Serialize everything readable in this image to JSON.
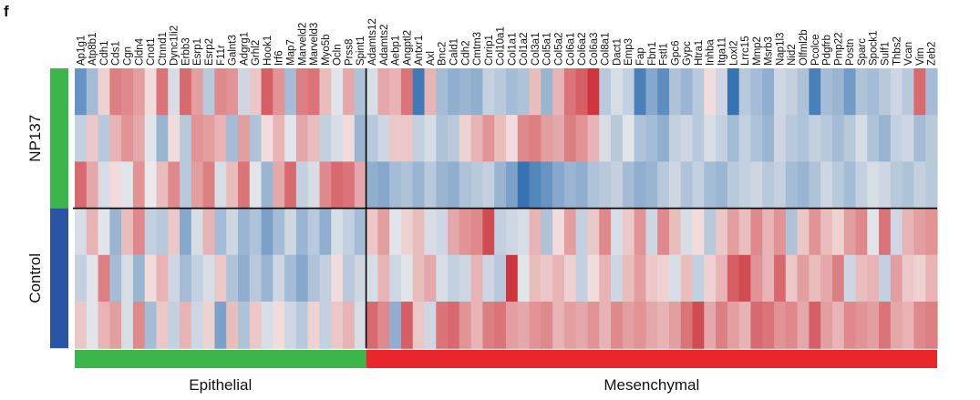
{
  "panel_label": "f",
  "chart_data": {
    "type": "heatmap",
    "genes": [
      "Ap1g1",
      "Atp8b1",
      "Cdh1",
      "Cds1",
      "Cgn",
      "Cldn4",
      "Cnot1",
      "Ctnnd1",
      "Dync1li2",
      "Erbb3",
      "Esrp1",
      "Esrp2",
      "F11r",
      "Galnt3",
      "Adgrg1",
      "Grhl2",
      "Hook1",
      "Irf6",
      "Map7",
      "Marveld2",
      "Marveld3",
      "Myo5b",
      "Ocln",
      "Prss8",
      "Spint1",
      "Adamts12",
      "Adamts2",
      "Aebp1",
      "Angptl2",
      "Antxr1",
      "Axl",
      "Bnc2",
      "Cald1",
      "Cdh2",
      "Cmtm3",
      "Cnrip1",
      "Col10a1",
      "Col1a1",
      "Col1a2",
      "Col3a1",
      "Col5a1",
      "Col5a2",
      "Col6a1",
      "Col6a2",
      "Col6a3",
      "Col8a1",
      "Dact1",
      "Emp3",
      "Fap",
      "Fbn1",
      "Fstl1",
      "Gpc6",
      "Gypc",
      "Htra1",
      "Inhba",
      "Itga11",
      "Loxl2",
      "Lrrc15",
      "Mmp2",
      "Msrb3",
      "Nap1l3",
      "Nid2",
      "Olfml2b",
      "Pcolce",
      "Pdgfrb",
      "Pmp22",
      "Postn",
      "Sparc",
      "Spock1",
      "Sulf1",
      "Thbs2",
      "Vcan",
      "Vim",
      "Zeb2"
    ],
    "n_epithelial": 25,
    "groups": [
      {
        "name": "NP137",
        "n_rows": 3,
        "color": "#3cb54a"
      },
      {
        "name": "Control",
        "n_rows": 3,
        "color": "#2a55a5"
      }
    ],
    "gene_sets": [
      {
        "name": "Epithelial",
        "color": "#3cb54a"
      },
      {
        "name": "Mesenchymal",
        "color": "#e8262c"
      }
    ],
    "color_scale": {
      "low": "#2b6cb0",
      "mid": "#f5f1ee",
      "high": "#c8212b",
      "range": [
        -2,
        2
      ]
    },
    "values": [
      [
        -1.4,
        -0.8,
        0.3,
        1.1,
        1.0,
        0.8,
        0.2,
        1.2,
        -0.3,
        1.3,
        0.8,
        -0.6,
        1.0,
        0.9,
        -0.4,
        0.4,
        1.4,
        0.9,
        -0.8,
        1.1,
        1.2,
        0.5,
        -0.2,
        0.7,
        -0.7,
        -0.3,
        0.7,
        0.6,
        1.2,
        -1.8,
        0.6,
        -0.8,
        -1.0,
        -0.9,
        -1.0,
        -0.5,
        -0.6,
        -0.8,
        -0.7,
        0.5,
        -0.9,
        0.6,
        1.2,
        1.4,
        1.8,
        -0.6,
        -0.3,
        -0.5,
        -1.7,
        -1.1,
        -1.5,
        -0.7,
        -0.9,
        -0.6,
        0.2,
        -0.4,
        -1.9,
        -0.6,
        -0.8,
        -1.0,
        -0.4,
        -0.5,
        -0.7,
        -1.7,
        -0.8,
        -0.9,
        -1.3,
        -0.7,
        -0.8,
        -0.6,
        -0.4,
        -0.6,
        1.3,
        -0.8
      ],
      [
        -0.5,
        0.4,
        -0.6,
        0.6,
        0.9,
        0.7,
        -0.2,
        -0.9,
        0.2,
        -0.6,
        0.9,
        0.8,
        0.6,
        -0.8,
        0.8,
        -0.7,
        0.2,
        0.6,
        -0.2,
        0.7,
        0.5,
        -0.5,
        -0.3,
        0.2,
        -0.9,
        -0.6,
        -0.4,
        0.4,
        0.4,
        -0.5,
        -0.3,
        -0.7,
        -0.6,
        0.3,
        0.6,
        0.9,
        0.5,
        0.2,
        1.0,
        1.1,
        0.8,
        0.7,
        1.1,
        0.9,
        0.6,
        -0.3,
        -0.6,
        -0.2,
        -0.7,
        -0.8,
        -1.0,
        -0.5,
        -0.4,
        -0.6,
        -0.3,
        -0.5,
        -0.8,
        -0.5,
        -0.7,
        -0.9,
        -0.4,
        -0.6,
        -0.7,
        -0.5,
        -0.6,
        -0.8,
        -0.6,
        -0.3,
        -0.7,
        -0.9,
        -0.5,
        -0.4,
        -0.8,
        -0.6
      ],
      [
        1.3,
        0.7,
        -0.3,
        0.2,
        -0.2,
        0.9,
        -0.1,
        0.5,
        1.0,
        -0.6,
        0.8,
        1.1,
        -0.3,
        0.5,
        1.2,
        -0.2,
        -0.9,
        0.7,
        1.3,
        -0.5,
        -0.3,
        1.0,
        1.3,
        1.2,
        0.7,
        -1.0,
        -1.1,
        -0.8,
        -0.7,
        -0.9,
        -0.6,
        -0.9,
        -1.0,
        -0.7,
        -0.6,
        -0.5,
        -0.9,
        -1.2,
        -1.9,
        -1.6,
        -1.4,
        -1.1,
        -0.9,
        -1.0,
        -0.7,
        -0.6,
        -0.5,
        -0.8,
        -1.0,
        -0.9,
        -0.6,
        -0.4,
        -0.7,
        -0.5,
        -0.8,
        -0.9,
        -0.6,
        -0.5,
        -0.4,
        -0.6,
        -0.5,
        -0.8,
        -0.9,
        -0.7,
        -0.4,
        -0.6,
        -0.8,
        -0.5,
        -0.3,
        -0.4,
        -0.6,
        -0.7,
        -0.5,
        -0.6
      ],
      [
        -0.3,
        0.6,
        -0.2,
        -0.9,
        0.5,
        1.0,
        -0.5,
        -0.6,
        0.4,
        -1.1,
        -0.3,
        0.6,
        -0.8,
        -0.4,
        -0.9,
        -0.7,
        -1.2,
        -0.8,
        -0.4,
        -0.9,
        -0.6,
        -1.0,
        -0.3,
        -0.5,
        -0.8,
        0.4,
        0.8,
        -0.2,
        0.3,
        0.5,
        -0.3,
        -0.4,
        0.7,
        0.9,
        1.0,
        1.6,
        -0.5,
        -0.4,
        -0.3,
        0.6,
        -0.7,
        0.2,
        0.8,
        -0.5,
        0.4,
        1.0,
        -0.3,
        0.4,
        0.9,
        -0.4,
        1.0,
        0.5,
        -0.3,
        0.2,
        -0.6,
        0.4,
        0.8,
        0.5,
        1.0,
        0.6,
        0.9,
        -0.7,
        0.4,
        0.9,
        0.5,
        0.3,
        0.8,
        1.0,
        -0.2,
        1.2,
        -0.4,
        0.6,
        0.8,
        0.9
      ],
      [
        -0.5,
        -0.2,
        1.1,
        -0.8,
        -0.3,
        -0.9,
        0.2,
        0.6,
        -0.4,
        -0.8,
        -0.5,
        -0.3,
        0.4,
        -0.7,
        -1.0,
        -0.6,
        -0.9,
        -0.4,
        -0.8,
        -1.1,
        -0.7,
        -0.5,
        0.2,
        -0.6,
        -0.4,
        -0.3,
        0.6,
        -0.4,
        -0.2,
        0.5,
        0.7,
        -0.3,
        -0.5,
        -0.4,
        0.6,
        -0.4,
        -0.6,
        1.8,
        -0.2,
        0.5,
        0.4,
        0.6,
        0.3,
        -0.5,
        0.2,
        0.6,
        -0.4,
        0.5,
        0.8,
        0.4,
        0.3,
        -0.3,
        0.5,
        -0.5,
        0.3,
        0.6,
        1.4,
        1.6,
        0.9,
        0.6,
        1.3,
        0.4,
        0.8,
        0.5,
        0.7,
        1.1,
        -0.4,
        0.5,
        0.6,
        -0.5,
        0.8,
        0.4,
        0.3,
        0.6
      ],
      [
        0.4,
        -0.2,
        0.6,
        0.8,
        -0.3,
        1.0,
        -0.8,
        0.4,
        -0.5,
        0.6,
        -0.4,
        0.3,
        -1.2,
        0.5,
        -0.7,
        0.4,
        -0.3,
        0.2,
        -0.4,
        -0.6,
        0.3,
        -0.5,
        0.4,
        0.6,
        -0.3,
        1.3,
        1.0,
        -1.0,
        1.4,
        0.4,
        -0.4,
        1.2,
        1.3,
        0.9,
        0.6,
        1.1,
        1.2,
        0.8,
        0.7,
        0.9,
        1.0,
        0.6,
        0.8,
        0.7,
        0.9,
        0.6,
        1.0,
        0.8,
        0.9,
        0.7,
        0.6,
        0.8,
        1.2,
        1.6,
        0.7,
        1.1,
        0.8,
        0.6,
        1.3,
        1.2,
        0.9,
        1.0,
        0.7,
        1.4,
        0.8,
        0.6,
        1.0,
        0.9,
        0.8,
        1.2,
        0.7,
        0.6,
        1.0,
        1.1
      ]
    ]
  },
  "colors": {
    "epithelial": "#3cb54a",
    "mesenchymal": "#e8262c",
    "np137": "#3cb54a",
    "control": "#2a55a5",
    "divider": "#000000"
  }
}
